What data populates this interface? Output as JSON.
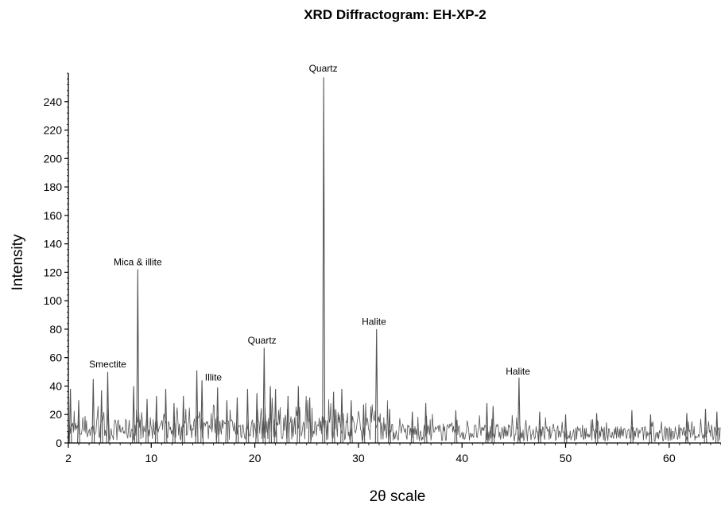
{
  "chart_data": {
    "type": "line",
    "title": "XRD Diffractogram: EH-XP-2",
    "xlabel": "2θ scale",
    "ylabel": "Intensity",
    "xlim": [
      2,
      65
    ],
    "ylim": [
      0,
      260
    ],
    "x_ticks": [
      2,
      10,
      20,
      30,
      40,
      50,
      60
    ],
    "y_ticks": [
      0,
      20,
      40,
      60,
      80,
      100,
      120,
      140,
      160,
      180,
      200,
      220,
      240
    ],
    "grid": false,
    "series": [
      {
        "color": "#555555",
        "peaks": [
          {
            "x": 2.2,
            "y": 38
          },
          {
            "x": 3.0,
            "y": 30
          },
          {
            "x": 4.4,
            "y": 45
          },
          {
            "x": 5.2,
            "y": 37
          },
          {
            "x": 5.8,
            "y": 50
          },
          {
            "x": 8.3,
            "y": 40
          },
          {
            "x": 8.7,
            "y": 122
          },
          {
            "x": 9.6,
            "y": 31
          },
          {
            "x": 10.5,
            "y": 33
          },
          {
            "x": 11.4,
            "y": 38
          },
          {
            "x": 12.2,
            "y": 28
          },
          {
            "x": 13.1,
            "y": 33
          },
          {
            "x": 14.4,
            "y": 51
          },
          {
            "x": 14.9,
            "y": 44
          },
          {
            "x": 16.4,
            "y": 39
          },
          {
            "x": 17.3,
            "y": 30
          },
          {
            "x": 18.3,
            "y": 32
          },
          {
            "x": 19.3,
            "y": 38
          },
          {
            "x": 20.2,
            "y": 35
          },
          {
            "x": 20.9,
            "y": 67
          },
          {
            "x": 21.5,
            "y": 40
          },
          {
            "x": 22.0,
            "y": 38
          },
          {
            "x": 23.2,
            "y": 33
          },
          {
            "x": 24.2,
            "y": 40
          },
          {
            "x": 25.3,
            "y": 32
          },
          {
            "x": 26.65,
            "y": 257
          },
          {
            "x": 27.6,
            "y": 36
          },
          {
            "x": 28.4,
            "y": 38
          },
          {
            "x": 29.3,
            "y": 30
          },
          {
            "x": 30.5,
            "y": 27
          },
          {
            "x": 31.75,
            "y": 80
          },
          {
            "x": 33.0,
            "y": 24
          },
          {
            "x": 35.2,
            "y": 22
          },
          {
            "x": 36.5,
            "y": 28
          },
          {
            "x": 39.4,
            "y": 23
          },
          {
            "x": 42.4,
            "y": 28
          },
          {
            "x": 43.0,
            "y": 26
          },
          {
            "x": 45.5,
            "y": 46
          },
          {
            "x": 47.5,
            "y": 22
          },
          {
            "x": 50.0,
            "y": 20
          },
          {
            "x": 53.0,
            "y": 21
          },
          {
            "x": 56.4,
            "y": 23
          },
          {
            "x": 58.2,
            "y": 20
          },
          {
            "x": 61.7,
            "y": 21
          },
          {
            "x": 63.5,
            "y": 24
          },
          {
            "x": 64.6,
            "y": 22
          }
        ]
      }
    ],
    "annotations": [
      {
        "text": "Smectite",
        "x": 5.8,
        "y": 53
      },
      {
        "text": "Mica & illite",
        "x": 8.7,
        "y": 125
      },
      {
        "text": "Illite",
        "x": 16.0,
        "y": 44
      },
      {
        "text": "Quartz",
        "x": 20.7,
        "y": 70
      },
      {
        "text": "Quartz",
        "x": 26.6,
        "y": 261
      },
      {
        "text": "Halite",
        "x": 31.5,
        "y": 83
      },
      {
        "text": "Halite",
        "x": 45.4,
        "y": 48
      }
    ]
  }
}
